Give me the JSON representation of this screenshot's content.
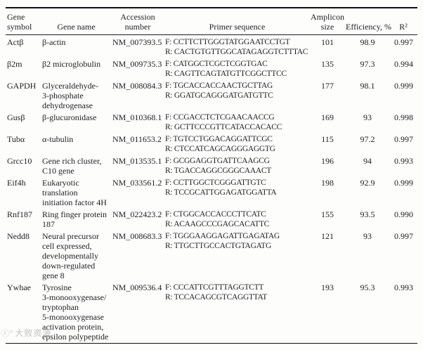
{
  "table": {
    "columns": [
      {
        "id": "gene-symbol",
        "header_lines": [
          "Gene",
          "symbol"
        ]
      },
      {
        "id": "gene-name",
        "header_lines": [
          "Gene name"
        ]
      },
      {
        "id": "accession",
        "header_lines": [
          "Accession",
          "number"
        ]
      },
      {
        "id": "primer",
        "header_lines": [
          "Primer sequence"
        ]
      },
      {
        "id": "amplicon",
        "header_lines": [
          "Amplicon",
          "size"
        ]
      },
      {
        "id": "efficiency",
        "header_lines": [
          "Efficiency, %"
        ]
      },
      {
        "id": "r2",
        "header_lines": [
          "R²"
        ]
      }
    ],
    "rows": [
      {
        "symbol": "Actβ",
        "name_lines": [
          "β-actin"
        ],
        "accession": "NM_007393.5",
        "primer_lines": [
          "F: CCTTCTTGGGTATGGAATCCTGT",
          "R: CACTGTGTTGGCATAGAGGTCTTTAC"
        ],
        "amplicon": "101",
        "efficiency": "98.9",
        "r2": "0.997"
      },
      {
        "symbol": "β2m",
        "name_lines": [
          "β2 microglobulin"
        ],
        "accession": "NM_009735.3",
        "primer_lines": [
          "F: CATGGCTCGCTCGGTGAC",
          "R: CAGTTCAGTATGTTCGGCTTCC"
        ],
        "amplicon": "135",
        "efficiency": "97.3",
        "r2": "0.994"
      },
      {
        "symbol": "GAPDH",
        "name_lines": [
          "Glyceraldehyde-",
          "3-phosphate",
          "dehydrogenase"
        ],
        "accession": "NM_008084.3",
        "primer_lines": [
          "F: TGCACCACCAACTGCTTAG",
          "R: GGATGCAGGGATGATGTTC"
        ],
        "amplicon": "177",
        "efficiency": "98.1",
        "r2": "0.999"
      },
      {
        "symbol": "Gusβ",
        "name_lines": [
          "β-glucuronidase"
        ],
        "accession": "NM_010368.1",
        "primer_lines": [
          "F: CCGACCTCTCGAACAACCG",
          "R: GCTTCCCGTTCATACCACACC"
        ],
        "amplicon": "169",
        "efficiency": "93",
        "r2": "0.998"
      },
      {
        "symbol": "Tubα",
        "name_lines": [
          "α-tubulin"
        ],
        "accession": "NM_011653.2",
        "primer_lines": [
          "F: TGTCCTGGACAGGATTCGC",
          "R: CTCCATCAGCAGGGAGGTG"
        ],
        "amplicon": "115",
        "efficiency": "97.2",
        "r2": "0.997"
      },
      {
        "symbol": "Grcc10",
        "name_lines": [
          "Gene rich cluster,",
          "C10 gene"
        ],
        "accession": "NM_013535.1",
        "primer_lines": [
          "F: GCGGAGGTGATTCAAGCG",
          "R: TGACCAGGCGGGCAAACT"
        ],
        "amplicon": "196",
        "efficiency": "94",
        "r2": "0.993"
      },
      {
        "symbol": "Eif4h",
        "name_lines": [
          "Eukaryotic",
          "translation",
          "initiation factor 4H"
        ],
        "accession": "NM_033561.2",
        "primer_lines": [
          "F: CCTTGGCTCGGGATTGTC",
          "R: TCCGCATTGGAGATGGATTA"
        ],
        "amplicon": "198",
        "efficiency": "92.9",
        "r2": "0.999"
      },
      {
        "symbol": "Rnf187",
        "name_lines": [
          "Ring finger protein",
          "187"
        ],
        "accession": "NM_022423.2",
        "primer_lines": [
          "F: CTGGCACCACCCTTCATC",
          "R: ACAAGCCCGAGCACATTC"
        ],
        "amplicon": "155",
        "efficiency": "93.5",
        "r2": "0.990"
      },
      {
        "symbol": "Nedd8",
        "name_lines": [
          "Neural precursor",
          "cell expressed,",
          "developmentally",
          "down-regulated",
          "gene 8"
        ],
        "accession": "NM_008683.3",
        "primer_lines": [
          "F: TGGGAAGGAGATTGAGATAG",
          "R: TTGCTTGCCACTGTAGATG"
        ],
        "amplicon": "121",
        "efficiency": "93",
        "r2": "0.997"
      },
      {
        "symbol": "Ywhae",
        "name_lines": [
          "Tyrosine",
          "3-monooxygenase/",
          "tryptophan",
          "5-monooxygenase",
          "activation protein,",
          "epsilon polypeptide"
        ],
        "accession": "NM_009536.4",
        "primer_lines": [
          "F: CCCATTCGTTTAGGTCTT",
          "R: TCCACAGCGTCAGGTTAT"
        ],
        "amplicon": "193",
        "efficiency": "95.3",
        "r2": "0.993"
      }
    ]
  },
  "watermark": {
    "logo": "ⓒ°",
    "text": "大败资源"
  }
}
